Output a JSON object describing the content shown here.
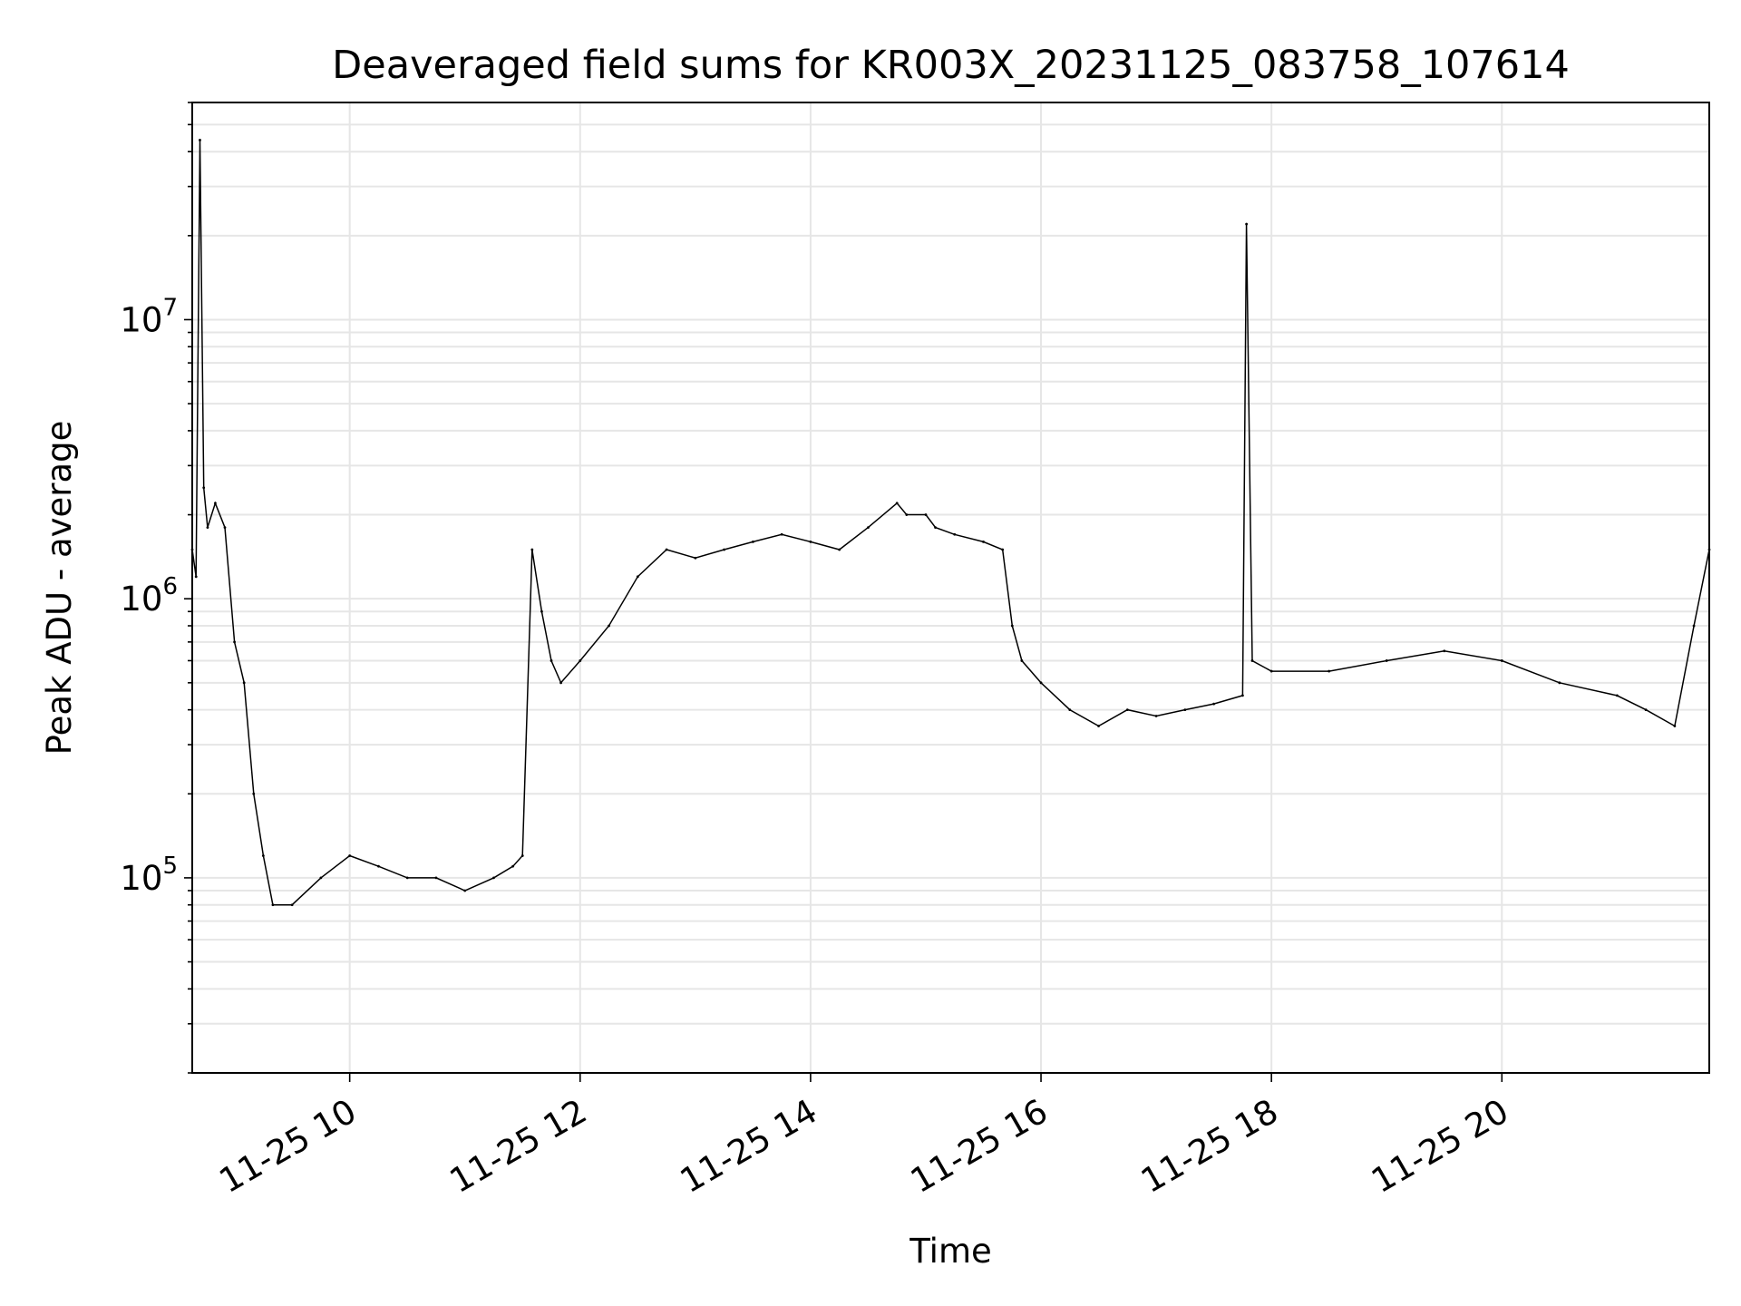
{
  "chart_data": {
    "type": "line",
    "title": "Deaveraged field sums for KR003X_20231125_083758_107614",
    "xlabel": "Time",
    "ylabel": "Peak ADU - average",
    "xscale": "time",
    "yscale": "log",
    "grid": true,
    "legend": "none",
    "line_color": "#000000",
    "xlim": [
      "2023-11-25T08:38",
      "2023-11-25T21:48"
    ],
    "ylim": [
      20000,
      60000000
    ],
    "xticks": [
      {
        "value": "2023-11-25T10:00",
        "label": "11-25 10"
      },
      {
        "value": "2023-11-25T12:00",
        "label": "11-25 12"
      },
      {
        "value": "2023-11-25T14:00",
        "label": "11-25 14"
      },
      {
        "value": "2023-11-25T16:00",
        "label": "11-25 16"
      },
      {
        "value": "2023-11-25T18:00",
        "label": "11-25 18"
      },
      {
        "value": "2023-11-25T20:00",
        "label": "11-25 20"
      }
    ],
    "yticks": [
      {
        "value": 100000,
        "base": "10",
        "exp": "5"
      },
      {
        "value": 1000000,
        "base": "10",
        "exp": "6"
      },
      {
        "value": 10000000,
        "base": "10",
        "exp": "7"
      }
    ],
    "series": [
      {
        "x": [
          "2023-11-25T08:38",
          "2023-11-25T08:40",
          "2023-11-25T08:42",
          "2023-11-25T08:44",
          "2023-11-25T08:46",
          "2023-11-25T08:50",
          "2023-11-25T08:55",
          "2023-11-25T09:00",
          "2023-11-25T09:05",
          "2023-11-25T09:10",
          "2023-11-25T09:15",
          "2023-11-25T09:20",
          "2023-11-25T09:30",
          "2023-11-25T09:45",
          "2023-11-25T10:00",
          "2023-11-25T10:15",
          "2023-11-25T10:30",
          "2023-11-25T10:45",
          "2023-11-25T11:00",
          "2023-11-25T11:15",
          "2023-11-25T11:25",
          "2023-11-25T11:30",
          "2023-11-25T11:35",
          "2023-11-25T11:40",
          "2023-11-25T11:45",
          "2023-11-25T11:50",
          "2023-11-25T12:00",
          "2023-11-25T12:15",
          "2023-11-25T12:30",
          "2023-11-25T12:45",
          "2023-11-25T13:00",
          "2023-11-25T13:15",
          "2023-11-25T13:30",
          "2023-11-25T13:45",
          "2023-11-25T14:00",
          "2023-11-25T14:15",
          "2023-11-25T14:30",
          "2023-11-25T14:45",
          "2023-11-25T14:50",
          "2023-11-25T15:00",
          "2023-11-25T15:05",
          "2023-11-25T15:15",
          "2023-11-25T15:30",
          "2023-11-25T15:40",
          "2023-11-25T15:45",
          "2023-11-25T15:50",
          "2023-11-25T16:00",
          "2023-11-25T16:15",
          "2023-11-25T16:30",
          "2023-11-25T16:45",
          "2023-11-25T17:00",
          "2023-11-25T17:15",
          "2023-11-25T17:30",
          "2023-11-25T17:45",
          "2023-11-25T17:47",
          "2023-11-25T17:50",
          "2023-11-25T18:00",
          "2023-11-25T18:30",
          "2023-11-25T19:00",
          "2023-11-25T19:30",
          "2023-11-25T20:00",
          "2023-11-25T20:30",
          "2023-11-25T21:00",
          "2023-11-25T21:15",
          "2023-11-25T21:30",
          "2023-11-25T21:40",
          "2023-11-25T21:48"
        ],
        "y": [
          1500000,
          1200000,
          44000000,
          2500000,
          1800000,
          2200000,
          1800000,
          700000,
          500000,
          200000,
          120000,
          80000,
          80000,
          100000,
          120000,
          110000,
          100000,
          100000,
          90000,
          100000,
          110000,
          120000,
          1500000,
          900000,
          600000,
          500000,
          600000,
          800000,
          1200000,
          1500000,
          1400000,
          1500000,
          1600000,
          1700000,
          1600000,
          1500000,
          1800000,
          2200000,
          2000000,
          2000000,
          1800000,
          1700000,
          1600000,
          1500000,
          800000,
          600000,
          500000,
          400000,
          350000,
          400000,
          380000,
          400000,
          420000,
          450000,
          22000000,
          600000,
          550000,
          550000,
          600000,
          650000,
          600000,
          500000,
          450000,
          400000,
          350000,
          800000,
          1500000
        ]
      }
    ]
  }
}
